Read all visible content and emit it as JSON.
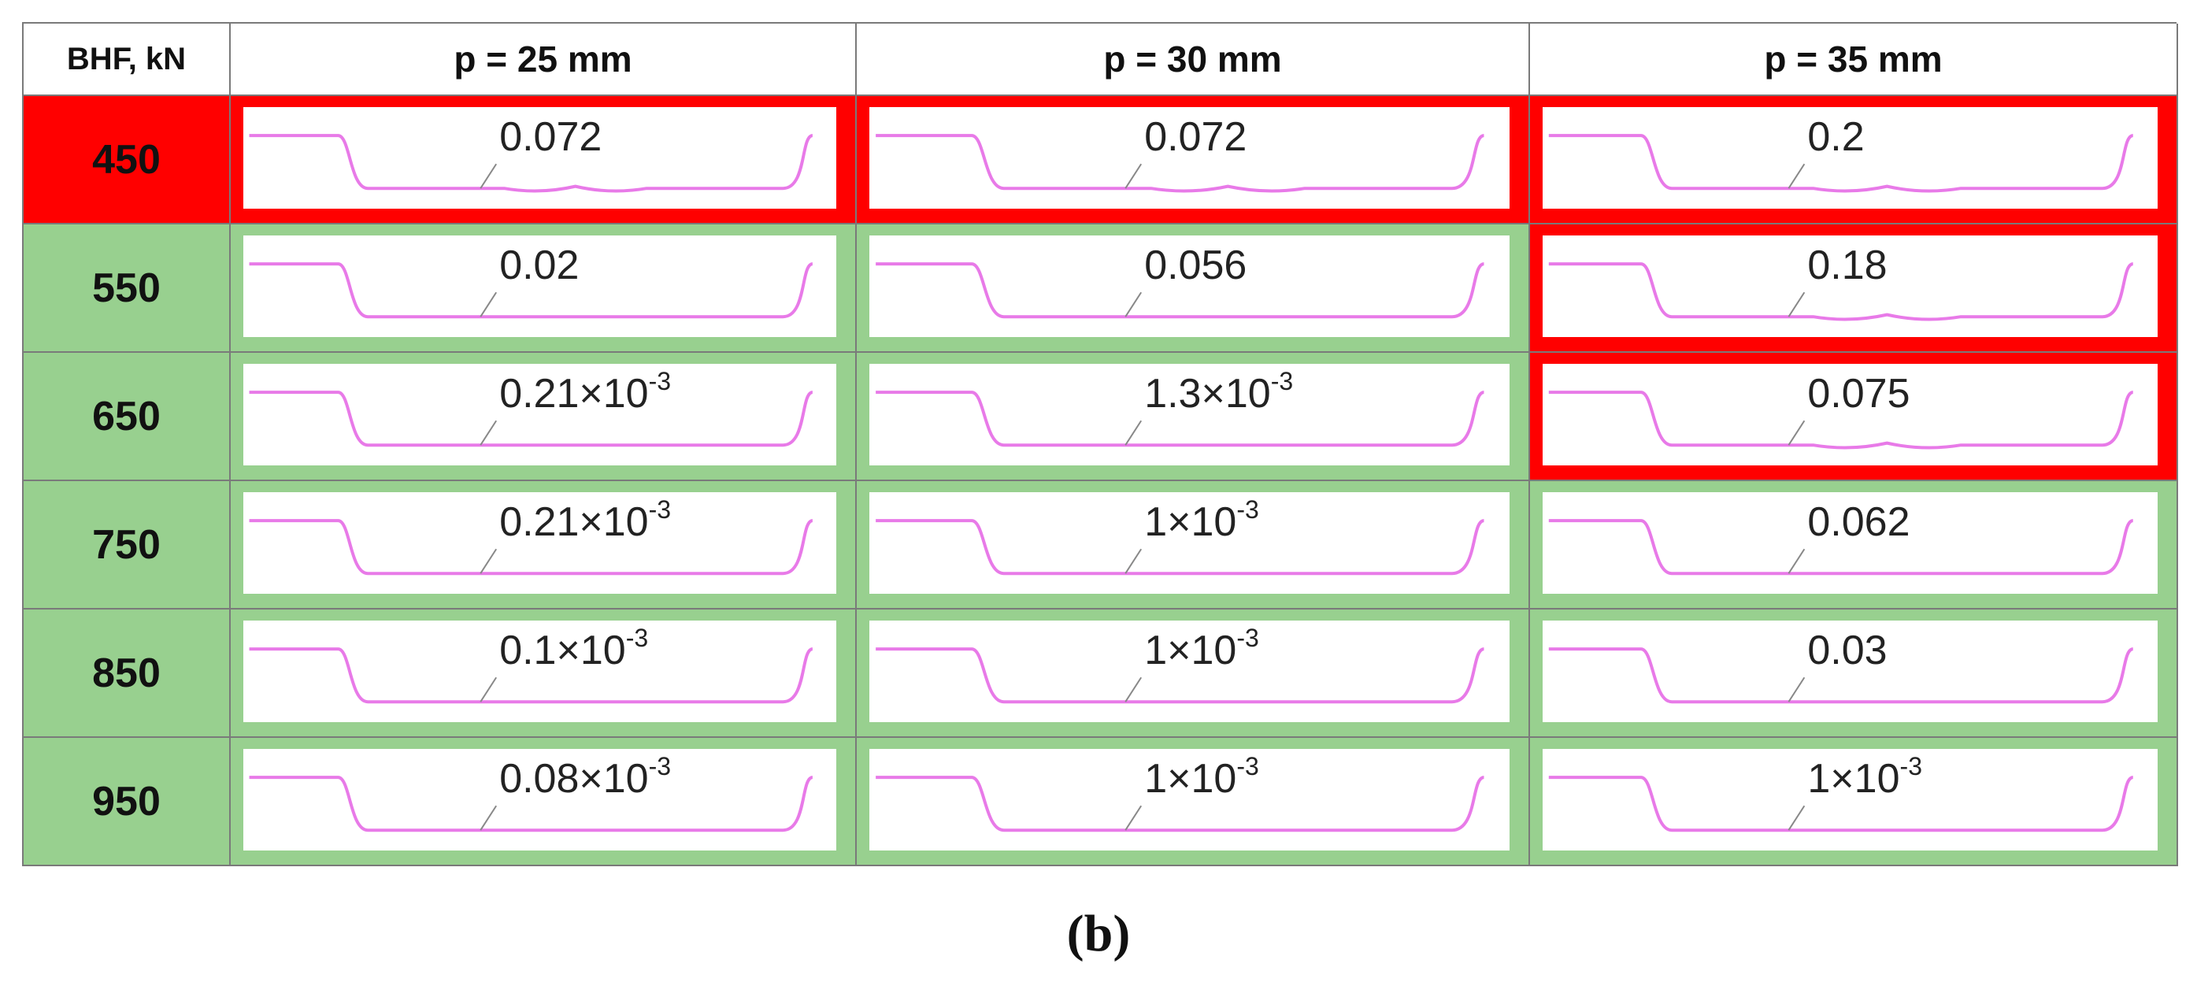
{
  "table": {
    "corner_header": "BHF, kN",
    "column_headers": [
      "p = 25 mm",
      "p = 30 mm",
      "p = 35 mm"
    ],
    "colors": {
      "fail": "#ff0000",
      "pass": "#98d08f",
      "profile": "#e87ae8",
      "profile_edge": "#3aa6a6"
    },
    "rows": [
      {
        "bhf": "450",
        "status": "fail",
        "cells": [
          {
            "base": "0.072",
            "exp": "",
            "status": "fail"
          },
          {
            "base": "0.072",
            "exp": "",
            "status": "fail"
          },
          {
            "base": "0.2",
            "exp": "",
            "status": "fail"
          }
        ]
      },
      {
        "bhf": "550",
        "status": "pass",
        "cells": [
          {
            "base": "0.02",
            "exp": "",
            "status": "pass"
          },
          {
            "base": "0.056",
            "exp": "",
            "status": "pass"
          },
          {
            "base": "0.18",
            "exp": "",
            "status": "fail"
          }
        ]
      },
      {
        "bhf": "650",
        "status": "pass",
        "cells": [
          {
            "base": "0.21×10",
            "exp": "-3",
            "status": "pass"
          },
          {
            "base": "1.3×10",
            "exp": "-3",
            "status": "pass"
          },
          {
            "base": "0.075",
            "exp": "",
            "status": "fail"
          }
        ]
      },
      {
        "bhf": "750",
        "status": "pass",
        "cells": [
          {
            "base": "0.21×10",
            "exp": "-3",
            "status": "pass"
          },
          {
            "base": "1×10",
            "exp": "-3",
            "status": "pass"
          },
          {
            "base": "0.062",
            "exp": "",
            "status": "pass"
          }
        ]
      },
      {
        "bhf": "850",
        "status": "pass",
        "cells": [
          {
            "base": "0.1×10",
            "exp": "-3",
            "status": "pass"
          },
          {
            "base": "1×10",
            "exp": "-3",
            "status": "pass"
          },
          {
            "base": "0.03",
            "exp": "",
            "status": "pass"
          }
        ]
      },
      {
        "bhf": "950",
        "status": "pass",
        "cells": [
          {
            "base": "0.08×10",
            "exp": "-3",
            "status": "pass"
          },
          {
            "base": "1×10",
            "exp": "-3",
            "status": "pass"
          },
          {
            "base": "1×10",
            "exp": "-3",
            "status": "pass"
          }
        ]
      }
    ]
  },
  "caption": "(b)"
}
